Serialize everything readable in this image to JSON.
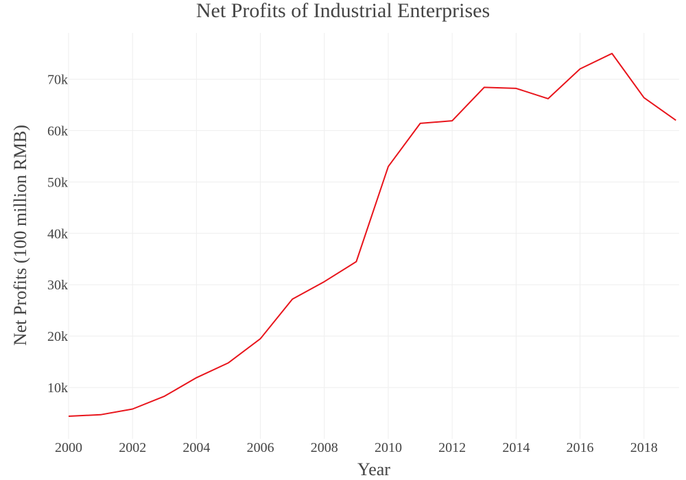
{
  "chart_data": {
    "type": "line",
    "title": "Net Profits of Industrial Enterprises",
    "xlabel": "Year",
    "ylabel": "Net Profits (100 million RMB)",
    "x": [
      2000,
      2001,
      2002,
      2003,
      2004,
      2005,
      2006,
      2007,
      2008,
      2009,
      2010,
      2011,
      2012,
      2013,
      2014,
      2015,
      2016,
      2017,
      2018,
      2019
    ],
    "series": [
      {
        "values": [
          4400,
          4700,
          5800,
          8300,
          11900,
          14800,
          19500,
          27200,
          30600,
          34500,
          53000,
          61400,
          61900,
          68400,
          68200,
          66200,
          72000,
          75000,
          66400,
          62000
        ]
      }
    ],
    "xlim": [
      2000,
      2019.1
    ],
    "ylim": [
      0,
      79000
    ],
    "x_ticks": [
      2000,
      2002,
      2004,
      2006,
      2008,
      2010,
      2012,
      2014,
      2016,
      2018
    ],
    "x_tick_labels": [
      "2000",
      "2002",
      "2004",
      "2006",
      "2008",
      "2010",
      "2012",
      "2014",
      "2016",
      "2018"
    ],
    "y_ticks": [
      10000,
      20000,
      30000,
      40000,
      50000,
      60000,
      70000
    ],
    "y_tick_labels": [
      "10k",
      "20k",
      "30k",
      "40k",
      "50k",
      "60k",
      "70k"
    ],
    "grid": true,
    "legend": "none",
    "colors": {
      "line": "#e8141b",
      "grid": "#eeeeee",
      "text": "#444444"
    }
  }
}
